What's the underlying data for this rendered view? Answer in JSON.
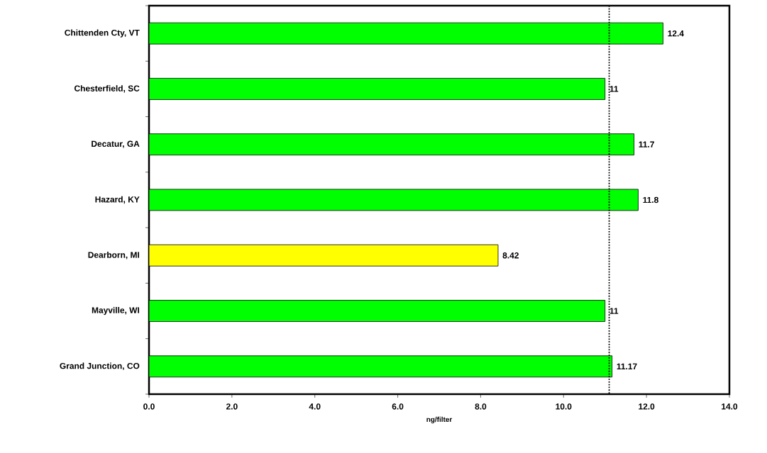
{
  "chart_data": {
    "type": "bar",
    "orientation": "horizontal",
    "xlabel": "ng/filter",
    "categories": [
      "Chittenden Cty, VT",
      "Chesterfield, SC",
      "Decatur, GA",
      "Hazard, KY",
      "Dearborn, MI",
      "Mayville, WI",
      "Grand Junction, CO"
    ],
    "values": [
      12.4,
      11,
      11.7,
      11.8,
      8.42,
      11,
      11.17
    ],
    "colors": [
      "#00ff00",
      "#00ff00",
      "#00ff00",
      "#00ff00",
      "#ffff00",
      "#00ff00",
      "#00ff00"
    ],
    "data_labels": true,
    "xlim": [
      0,
      14
    ],
    "xticks": [
      {
        "value": 0,
        "label": "0.0"
      },
      {
        "value": 2,
        "label": "2.0"
      },
      {
        "value": 4,
        "label": "4.0"
      },
      {
        "value": 6,
        "label": "6.0"
      },
      {
        "value": 8,
        "label": "8.0"
      },
      {
        "value": 10,
        "label": "10.0"
      },
      {
        "value": 12,
        "label": "12.0"
      },
      {
        "value": 14,
        "label": "14.0"
      }
    ],
    "ref_lines": [
      {
        "axis": "x",
        "value": 11.1,
        "line_style": "dotted"
      }
    ]
  }
}
